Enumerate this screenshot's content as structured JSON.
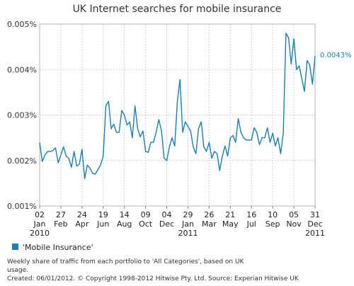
{
  "chart_data": {
    "type": "line",
    "title": "UK Internet searches for mobile insurance",
    "xlabel": "",
    "ylabel": "",
    "y_ticks": [
      "0.005%",
      "0.004%",
      "0.003%",
      "0.002%",
      "0.001%"
    ],
    "y_tick_values": [
      0.005,
      0.004,
      0.003,
      0.002,
      0.001
    ],
    "ylim": [
      0.001,
      0.005
    ],
    "x_ticks": [
      {
        "day": "02",
        "month": "Jan",
        "year": "2010"
      },
      {
        "day": "27",
        "month": "Feb",
        "year": ""
      },
      {
        "day": "24",
        "month": "Apr",
        "year": ""
      },
      {
        "day": "19",
        "month": "Jun",
        "year": ""
      },
      {
        "day": "14",
        "month": "Aug",
        "year": ""
      },
      {
        "day": "09",
        "month": "Oct",
        "year": ""
      },
      {
        "day": "04",
        "month": "Dec",
        "year": ""
      },
      {
        "day": "29",
        "month": "Jan",
        "year": "2011"
      },
      {
        "day": "26",
        "month": "Mar",
        "year": ""
      },
      {
        "day": "21",
        "month": "May",
        "year": ""
      },
      {
        "day": "16",
        "month": "Jul",
        "year": ""
      },
      {
        "day": "10",
        "month": "Sep",
        "year": ""
      },
      {
        "day": "05",
        "month": "Nov",
        "year": ""
      },
      {
        "day": "31",
        "month": "Dec",
        "year": "2011"
      }
    ],
    "x_tick_weeks": [
      0,
      8,
      16,
      24,
      32,
      40,
      48,
      56,
      64,
      72,
      80,
      88,
      96,
      104
    ],
    "grid": true,
    "legend_position": "bottom-left",
    "series": [
      {
        "name": "'Mobile Insurance'",
        "color": "#1a7fb3",
        "end_label": "0.0043%",
        "values": [
          0.0024,
          0.00198,
          0.00212,
          0.0022,
          0.0022,
          0.00222,
          0.00228,
          0.00195,
          0.00212,
          0.0023,
          0.0021,
          0.00205,
          0.00185,
          0.0022,
          0.00188,
          0.00192,
          0.00225,
          0.0016,
          0.0019,
          0.00183,
          0.00172,
          0.0017,
          0.0018,
          0.0019,
          0.0021,
          0.0032,
          0.0033,
          0.0027,
          0.0028,
          0.00262,
          0.00262,
          0.0031,
          0.003,
          0.00278,
          0.00285,
          0.0025,
          0.0032,
          0.0027,
          0.00252,
          0.00265,
          0.0022,
          0.00218,
          0.0024,
          0.0024,
          0.00262,
          0.0029,
          0.00265,
          0.00205,
          0.002,
          0.0023,
          0.0025,
          0.00232,
          0.0033,
          0.00378,
          0.00262,
          0.00285,
          0.00275,
          0.00265,
          0.0023,
          0.00215,
          0.0027,
          0.00285,
          0.0023,
          0.0022,
          0.0024,
          0.00205,
          0.0022,
          0.00215,
          0.00178,
          0.0021,
          0.00232,
          0.0021,
          0.0025,
          0.00255,
          0.0024,
          0.00292,
          0.00262,
          0.0025,
          0.00245,
          0.00245,
          0.00245,
          0.00272,
          0.00262,
          0.00235,
          0.0025,
          0.0025,
          0.00272,
          0.0024,
          0.0026,
          0.00232,
          0.0025,
          0.00215,
          0.0026,
          0.0048,
          0.0047,
          0.00412,
          0.00468,
          0.004,
          0.00408,
          0.0038,
          0.00352,
          0.0042,
          0.0041,
          0.00368,
          0.0043
        ]
      }
    ]
  },
  "footnote": {
    "line1": "Weekly share of traffic from each portfolio to 'All Categories', based on UK",
    "line2": "usage.",
    "line3": "Created: 06/01/2012. © Copyright 1998-2012 Hitwise Pty. Ltd.    Source: Experian Hitwise UK"
  }
}
